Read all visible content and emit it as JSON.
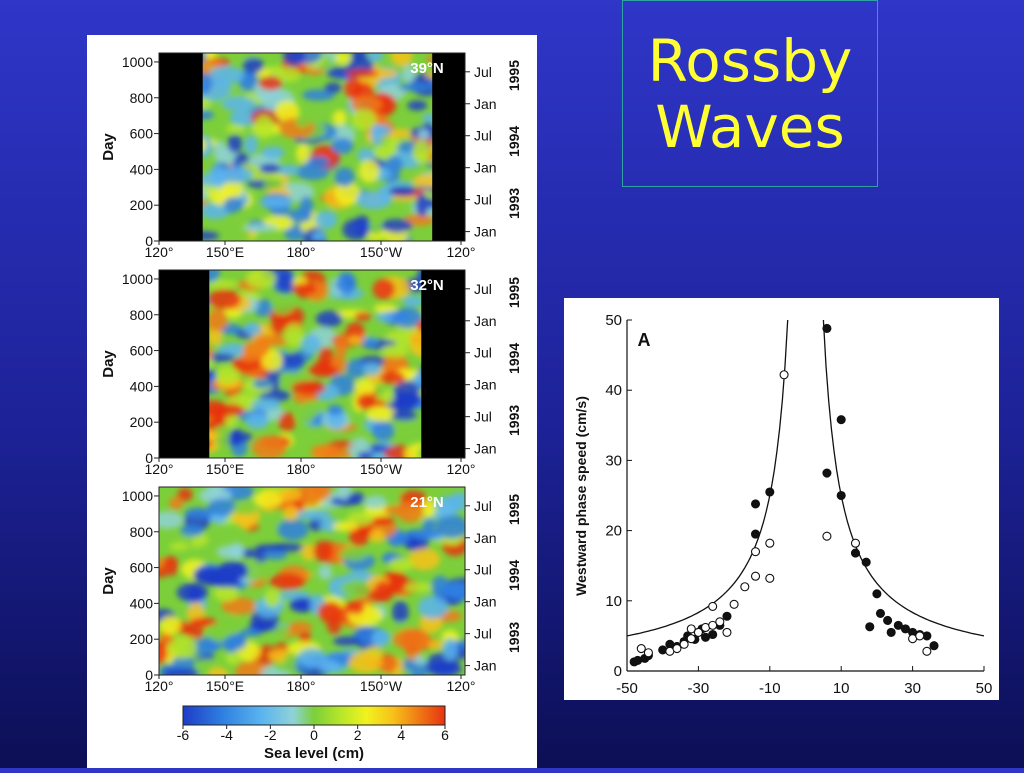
{
  "slide": {
    "title": "Rossby\nWaves"
  },
  "colors": {
    "background": "#2428b0",
    "title_text": "#ffff33",
    "title_border": "#2fa3a0",
    "map_scale": [
      "#1e3cc8",
      "#2f7fe0",
      "#5ab4f0",
      "#8fd2d8",
      "#7ccf3a",
      "#b6e62a",
      "#f2f21e",
      "#f7c21a",
      "#f07a14",
      "#e83212"
    ]
  },
  "chart_data": [
    {
      "id": "panel-39n",
      "type": "heatmap",
      "annotation": "39°N",
      "x_ticks": [
        "120°",
        "150°E",
        "180°",
        "150°W",
        "120°"
      ],
      "y_ticks": [
        0,
        200,
        400,
        600,
        800,
        1000
      ],
      "ylabel": "Day",
      "right_month_ticks": [
        "Jul",
        "Jan",
        "Jul",
        "Jan",
        "Jul",
        "Jan"
      ],
      "right_year_ticks": [
        "1995",
        "1994",
        "1993"
      ],
      "land_mask_longitudes": [
        [
          120,
          140
        ],
        [
          245,
          260
        ]
      ],
      "ylim": [
        0,
        1050
      ]
    },
    {
      "id": "panel-32n",
      "type": "heatmap",
      "annotation": "32°N",
      "x_ticks": [
        "120°",
        "150°E",
        "180°",
        "150°W",
        "120°"
      ],
      "y_ticks": [
        0,
        200,
        400,
        600,
        800,
        1000
      ],
      "ylabel": "Day",
      "right_month_ticks": [
        "Jul",
        "Jan",
        "Jul",
        "Jan",
        "Jul",
        "Jan"
      ],
      "right_year_ticks": [
        "1995",
        "1994",
        "1993"
      ],
      "land_mask_longitudes": [
        [
          120,
          143
        ],
        [
          240,
          260
        ]
      ],
      "ylim": [
        0,
        1050
      ]
    },
    {
      "id": "panel-21n",
      "type": "heatmap",
      "annotation": "21°N",
      "x_ticks": [
        "120°",
        "150°E",
        "180°",
        "150°W",
        "120°"
      ],
      "y_ticks": [
        0,
        200,
        400,
        600,
        800,
        1000
      ],
      "ylabel": "Day",
      "right_month_ticks": [
        "Jul",
        "Jan",
        "Jul",
        "Jan",
        "Jul",
        "Jan"
      ],
      "right_year_ticks": [
        "1995",
        "1994",
        "1993"
      ],
      "land_mask_longitudes": [],
      "ylim": [
        0,
        1050
      ]
    },
    {
      "id": "colorbar",
      "type": "heatmap",
      "ticks": [
        -6,
        -4,
        -2,
        0,
        2,
        4,
        6
      ],
      "xlabel": "Sea level (cm)",
      "range": [
        -6,
        6
      ]
    },
    {
      "id": "phase-speed",
      "type": "scatter",
      "panel_label": "A",
      "ylabel": "Westward phase speed (cm/s)",
      "xlabel": "",
      "xlim": [
        -50,
        50
      ],
      "ylim": [
        0,
        50
      ],
      "x_ticks": [
        -50,
        -30,
        -10,
        10,
        30,
        50
      ],
      "y_ticks": [
        0,
        10,
        20,
        30,
        40,
        50
      ],
      "series": [
        {
          "marker": "filled",
          "points": [
            [
              -48,
              1.3
            ],
            [
              -47,
              1.5
            ],
            [
              -45,
              1.8
            ],
            [
              -44,
              2.2
            ],
            [
              -40,
              3.0
            ],
            [
              -38,
              3.8
            ],
            [
              -36,
              3.5
            ],
            [
              -34,
              4.2
            ],
            [
              -33,
              5.0
            ],
            [
              -31,
              4.5
            ],
            [
              -30,
              5.5
            ],
            [
              -29,
              6.0
            ],
            [
              -28,
              4.8
            ],
            [
              -26,
              5.2
            ],
            [
              -24,
              6.5
            ],
            [
              -22,
              7.8
            ],
            [
              -14,
              23.8
            ],
            [
              -14,
              19.5
            ],
            [
              -10,
              25.5
            ],
            [
              6,
              48.8
            ],
            [
              6,
              28.2
            ],
            [
              10,
              35.8
            ],
            [
              10,
              25.0
            ],
            [
              14,
              16.8
            ],
            [
              17,
              15.5
            ],
            [
              18,
              6.3
            ],
            [
              20,
              11.0
            ],
            [
              21,
              8.2
            ],
            [
              23,
              7.2
            ],
            [
              24,
              5.5
            ],
            [
              26,
              6.5
            ],
            [
              28,
              6.0
            ],
            [
              30,
              5.5
            ],
            [
              32,
              5.2
            ],
            [
              34,
              5.0
            ],
            [
              36,
              3.6
            ]
          ]
        },
        {
          "marker": "open",
          "points": [
            [
              -46,
              3.2
            ],
            [
              -44,
              2.6
            ],
            [
              -38,
              2.8
            ],
            [
              -36,
              3.2
            ],
            [
              -34,
              3.8
            ],
            [
              -32,
              4.6
            ],
            [
              -32,
              6.0
            ],
            [
              -30,
              5.5
            ],
            [
              -28,
              6.2
            ],
            [
              -26,
              9.2
            ],
            [
              -26,
              6.5
            ],
            [
              -24,
              7.0
            ],
            [
              -22,
              5.5
            ],
            [
              -20,
              9.5
            ],
            [
              -17,
              12.0
            ],
            [
              -14,
              13.5
            ],
            [
              -14,
              17.0
            ],
            [
              -10,
              13.2
            ],
            [
              -10,
              18.2
            ],
            [
              -6,
              42.2
            ],
            [
              6,
              19.2
            ],
            [
              14,
              18.2
            ],
            [
              30,
              4.6
            ],
            [
              32,
              5.0
            ],
            [
              34,
              2.8
            ]
          ]
        }
      ],
      "theory_curve": "c = A / |latitude| with asymptote near 0"
    }
  ]
}
